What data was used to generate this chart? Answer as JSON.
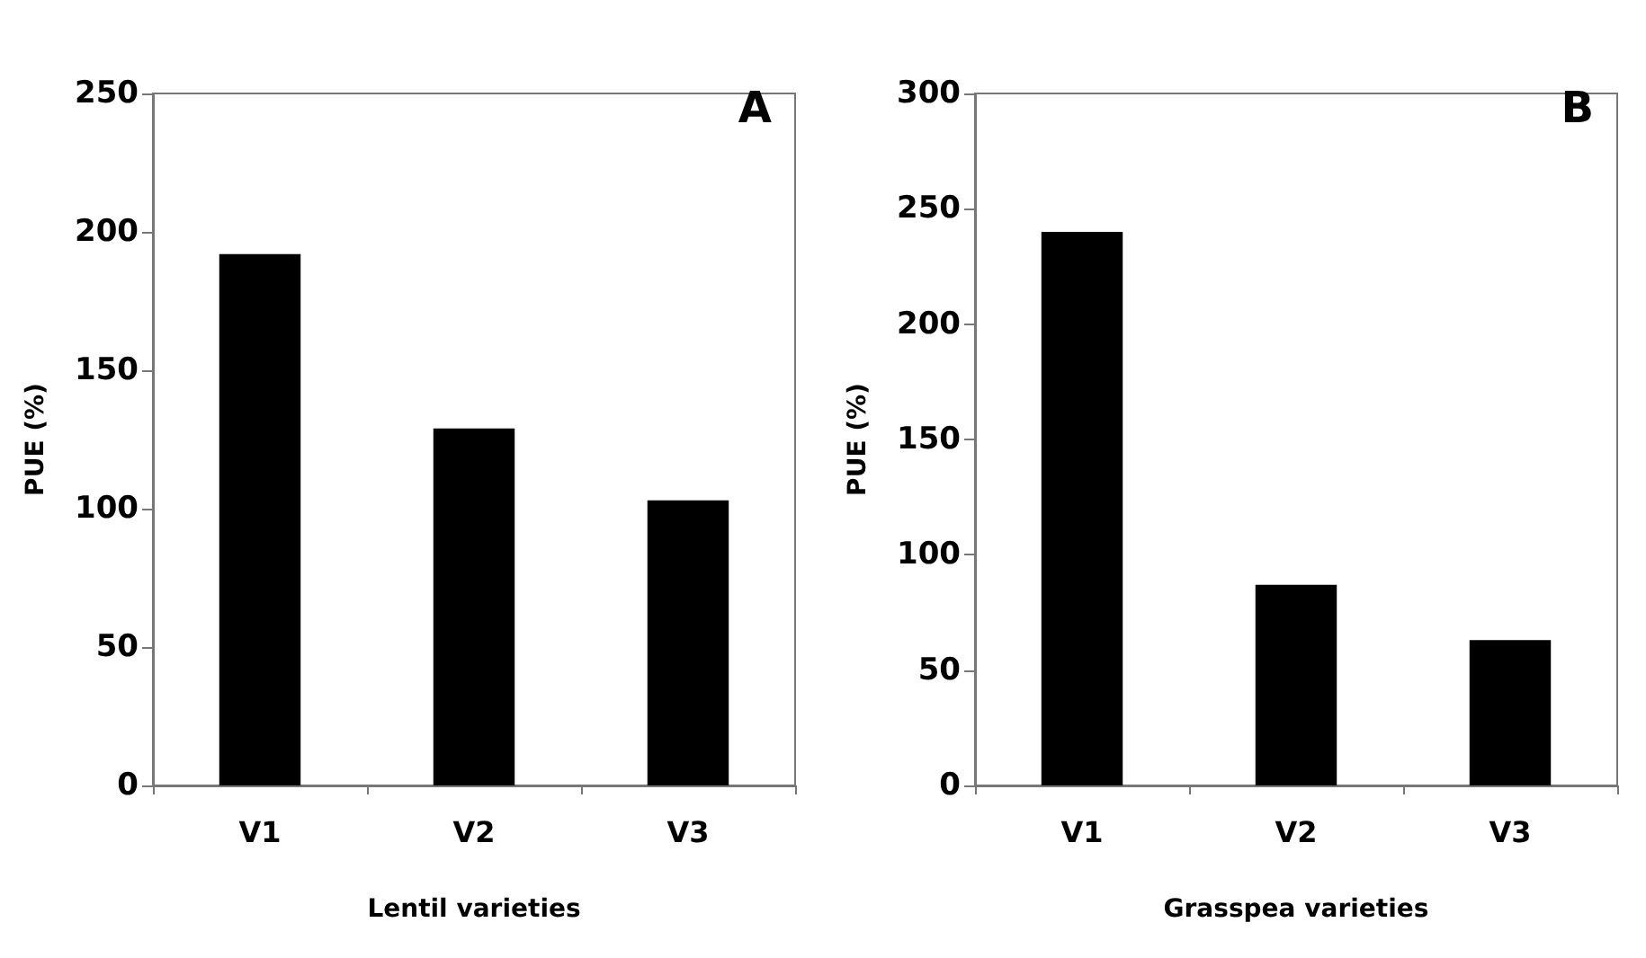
{
  "chart_data": [
    {
      "type": "bar",
      "categories": [
        "V1",
        "V2",
        "V3"
      ],
      "values": [
        192,
        129,
        103
      ],
      "color": "#000000",
      "xlabel": "Lentil varieties",
      "ylabel": "PUE (%)",
      "ylim": [
        0,
        250
      ],
      "yticks": [
        0,
        50,
        100,
        150,
        200,
        250
      ],
      "grid": false,
      "annotations": [
        "A"
      ]
    },
    {
      "type": "bar",
      "categories": [
        "V1",
        "V2",
        "V3"
      ],
      "values": [
        240,
        87,
        63
      ],
      "color": "#000000",
      "xlabel": "Grasspea varieties",
      "ylabel": "PUE (%)",
      "ylim": [
        0,
        300
      ],
      "yticks": [
        0,
        50,
        100,
        150,
        200,
        250,
        300
      ],
      "grid": false,
      "annotations": [
        "B"
      ]
    }
  ]
}
